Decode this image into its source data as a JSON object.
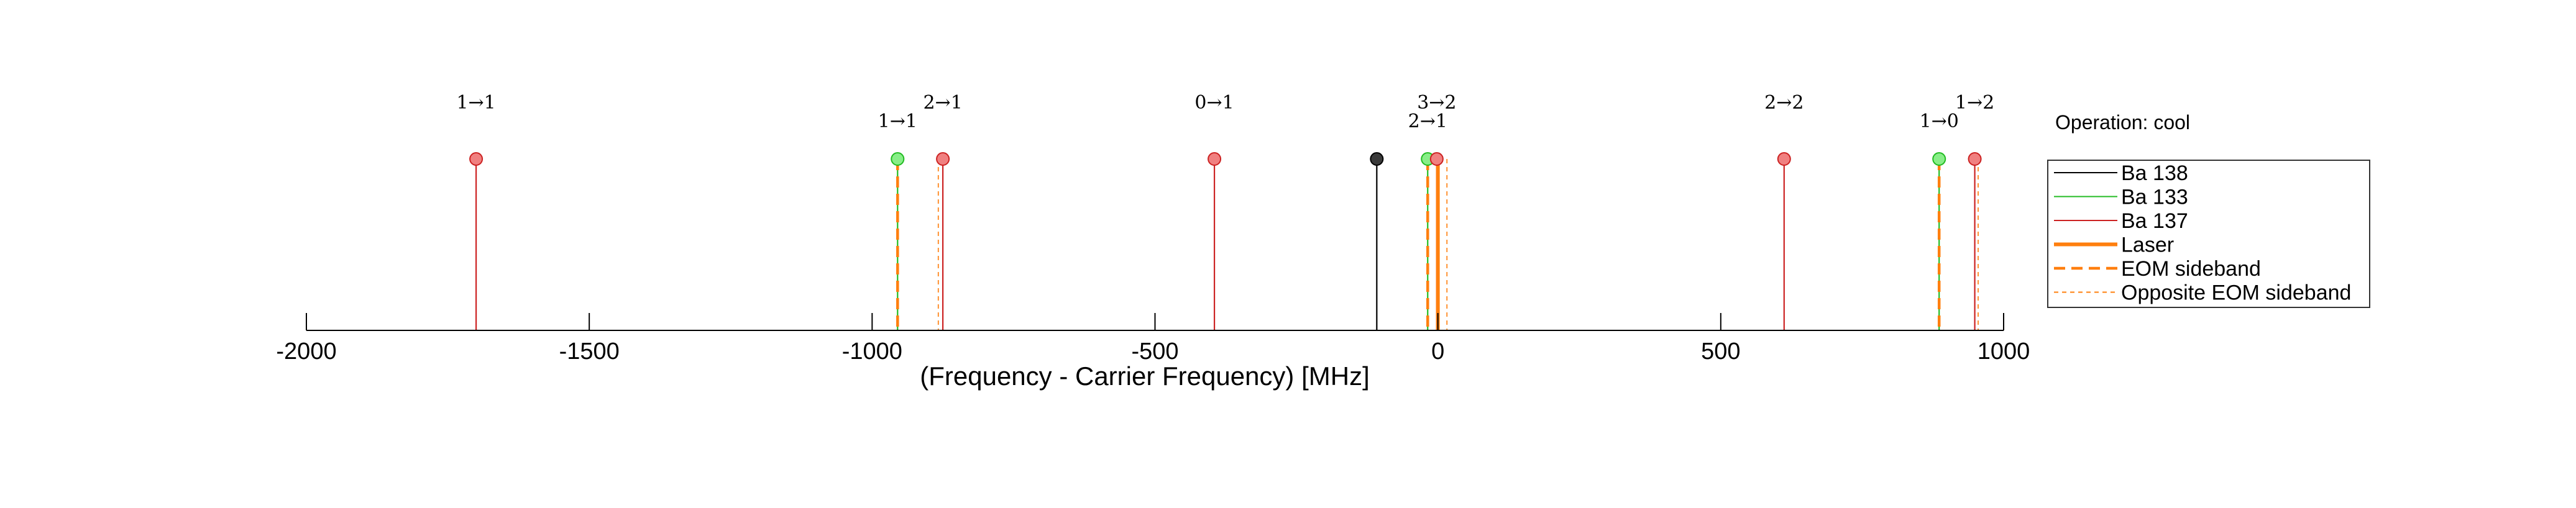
{
  "chart_data": {
    "type": "stem",
    "xlabel": "(Frequency - Carrier Frequency) [MHz]",
    "xlim": [
      -2000,
      1000
    ],
    "xticks": [
      -2000,
      -1500,
      -1000,
      -500,
      0,
      500,
      1000
    ],
    "xtick_labels": [
      "-2000",
      "-1500",
      "-1000",
      "-500",
      "0",
      "500",
      "1000"
    ],
    "grid": false,
    "operation_label": "Operation: cool",
    "legend_position": "right",
    "colors": {
      "ba138": "#000000",
      "ba138_marker": "#3a3a3a",
      "ba133": "#22bb22",
      "ba133_marker": "#88ee88",
      "ba137": "#cc2222",
      "ba137_marker": "#f08080",
      "laser": "#ff7f0e",
      "axis": "#000000",
      "legend_border": "#333333"
    },
    "legend": [
      {
        "label": "Ba 138",
        "style": "ba138"
      },
      {
        "label": "Ba 133",
        "style": "ba133"
      },
      {
        "label": "Ba 137",
        "style": "ba137"
      },
      {
        "label": "Laser",
        "style": "laser"
      },
      {
        "label": "EOM sideband",
        "style": "eom"
      },
      {
        "label": "Opposite EOM sideband",
        "style": "opposite"
      }
    ],
    "transitions": [
      {
        "isotope": "Ba 137",
        "freq": -1700,
        "label": "1→1"
      },
      {
        "isotope": "Ba 133",
        "freq": -955,
        "label": "1→1"
      },
      {
        "isotope": "Ba 137",
        "freq": -875,
        "label": "2→1"
      },
      {
        "isotope": "Ba 137",
        "freq": -395,
        "label": "0→1"
      },
      {
        "isotope": "Ba 138",
        "freq": -108,
        "label": ""
      },
      {
        "isotope": "Ba 133",
        "freq": -18,
        "label": "2→1"
      },
      {
        "isotope": "Ba 137",
        "freq": -2,
        "label": "3→2"
      },
      {
        "isotope": "Ba 137",
        "freq": 612,
        "label": "2→2"
      },
      {
        "isotope": "Ba 133",
        "freq": 886,
        "label": "1→0"
      },
      {
        "isotope": "Ba 137",
        "freq": 949,
        "label": "1→2"
      }
    ],
    "laser_lines": [
      {
        "type": "laser",
        "freq": 0
      },
      {
        "type": "eom",
        "freq": -955
      },
      {
        "type": "eom",
        "freq": -18
      },
      {
        "type": "eom",
        "freq": 886
      },
      {
        "type": "opposite",
        "freq": -883
      },
      {
        "type": "opposite",
        "freq": 16
      },
      {
        "type": "opposite",
        "freq": 955
      }
    ]
  }
}
